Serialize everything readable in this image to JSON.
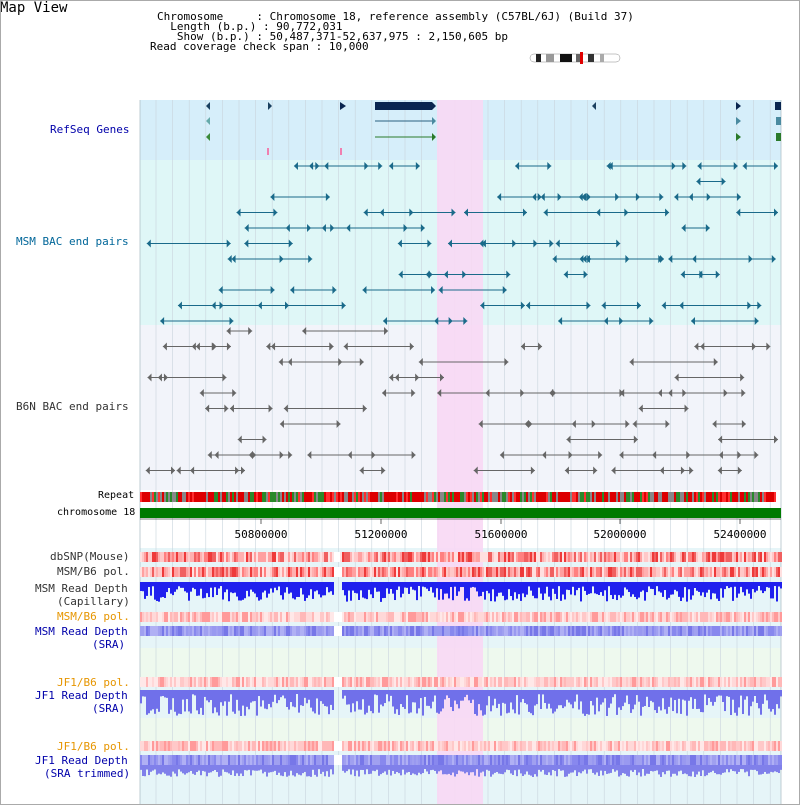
{
  "title": "Map View",
  "header": {
    "chromosome_key": "Chromosome    ",
    "chromosome_val": "Chromosome 18, reference assembly (C57BL/6J) (Build 37)",
    "length_key": "  Length (b.p.)",
    "length_val": "90,772,031",
    "show_key": "   Show (b.p.)",
    "show_val": "50,487,371-52,637,975 : 2,150,605 bp",
    "coverage_key": "Read coverage check span",
    "coverage_val": "10,000"
  },
  "tracks": {
    "refseq": "RefSeq Genes",
    "msm_bac": "MSM BAC end pairs",
    "b6n_bac": "B6N BAC end pairs",
    "repeat": "Repeat",
    "chromosome": "chromosome 18",
    "dbsnp": "dbSNP(Mouse)",
    "msm_b6_pol": "MSM/B6 pol.",
    "msm_depth_cap_1": "MSM Read Depth",
    "msm_depth_cap_2": "(Capillary)",
    "msm_b6_pol2": "MSM/B6 pol.",
    "msm_depth_sra_1": "MSM Read Depth",
    "msm_depth_sra_2": "(SRA)",
    "jf1_b6_pol": "JF1/B6 pol.",
    "jf1_depth_sra_1": "JF1 Read Depth",
    "jf1_depth_sra_2": "(SRA)",
    "jf1_b6_pol2": "JF1/B6 pol.",
    "jf1_depth_trim_1": "JF1 Read Depth",
    "jf1_depth_trim_2": "(SRA trimmed)"
  },
  "axis": {
    "ticks": [
      "50800000",
      "51200000",
      "51600000",
      "52000000",
      "52400000"
    ]
  },
  "colors": {
    "refseq_bg": "#d6eefa",
    "msm_bg": "#dff7f7",
    "b6n_bg": "#f2f4fa",
    "highlight": "#f8d8f4",
    "gene_navy": "#0a2550",
    "chrom_green": "#007a00",
    "repeat_red": "#dd0000",
    "pol_red": "#ee3a3a",
    "depth_blue": "#2020ee",
    "depth_lav": "#8888ee"
  }
}
